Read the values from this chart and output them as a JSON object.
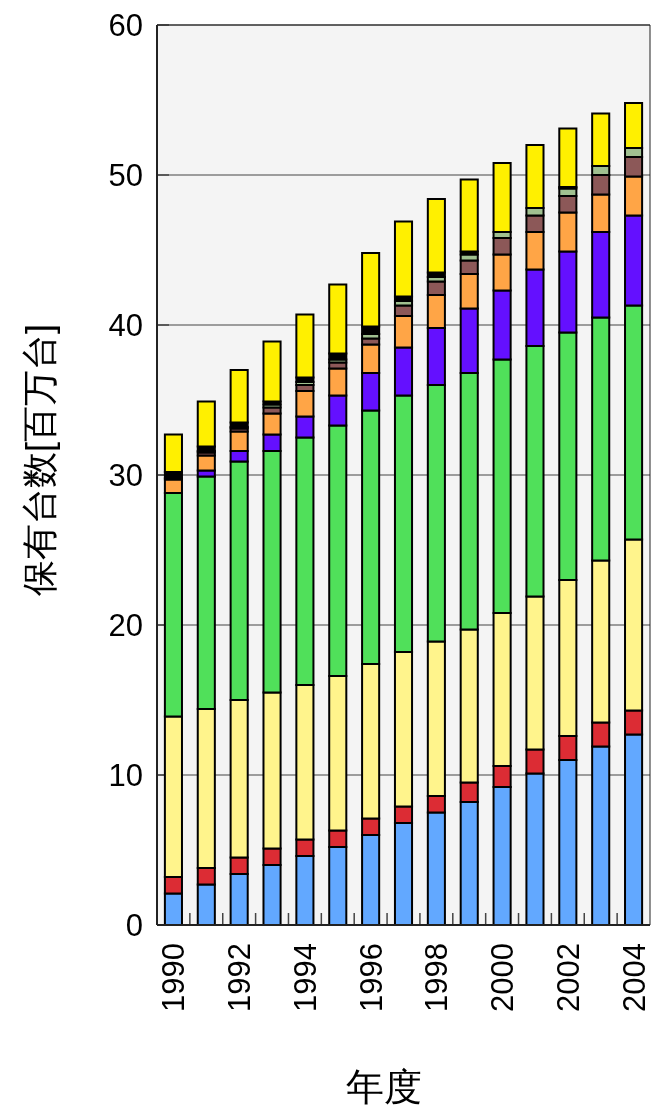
{
  "chart_data": {
    "type": "bar",
    "stacked": true,
    "xlabel": "年度",
    "ylabel": "保有台数[百万台]",
    "categories": [
      "1990",
      null,
      "1992",
      null,
      "1994",
      null,
      "1996",
      null,
      "1998",
      null,
      "2000",
      null,
      "2002",
      null,
      "2004"
    ],
    "ylim": [
      0,
      60
    ],
    "yticks": [
      0,
      10,
      20,
      30,
      40,
      50,
      60
    ],
    "grid": "y",
    "series": [
      {
        "color": "#62a8ff",
        "values": [
          2.1,
          2.7,
          3.4,
          4.0,
          4.6,
          5.2,
          6.0,
          6.8,
          7.5,
          8.2,
          9.2,
          10.1,
          11.0,
          11.9,
          12.7
        ]
      },
      {
        "color": "#dc2c34",
        "values": [
          1.1,
          1.1,
          1.1,
          1.1,
          1.1,
          1.1,
          1.1,
          1.1,
          1.1,
          1.3,
          1.4,
          1.6,
          1.6,
          1.6,
          1.6
        ]
      },
      {
        "color": "#fff48c",
        "values": [
          10.7,
          10.6,
          10.5,
          10.4,
          10.3,
          10.3,
          10.3,
          10.3,
          10.3,
          10.2,
          10.2,
          10.2,
          10.4,
          10.8,
          11.4
        ]
      },
      {
        "color": "#50e05a",
        "values": [
          14.9,
          15.5,
          15.9,
          16.1,
          16.5,
          16.7,
          16.9,
          17.1,
          17.1,
          17.1,
          16.9,
          16.7,
          16.5,
          16.2,
          15.6
        ]
      },
      {
        "color": "#6410ff",
        "values": [
          0,
          0.4,
          0.7,
          1.1,
          1.4,
          2.0,
          2.5,
          3.2,
          3.8,
          4.3,
          4.6,
          5.1,
          5.4,
          5.7,
          6.0
        ]
      },
      {
        "color": "#ffa546",
        "values": [
          0.9,
          1.0,
          1.3,
          1.4,
          1.7,
          1.8,
          1.9,
          2.1,
          2.2,
          2.3,
          2.4,
          2.5,
          2.6,
          2.5,
          2.6
        ]
      },
      {
        "color": "#8c5858",
        "values": [
          0,
          0.2,
          0.2,
          0.4,
          0.4,
          0.4,
          0.4,
          0.7,
          0.9,
          0.9,
          1.1,
          1.1,
          1.1,
          1.3,
          1.3
        ]
      },
      {
        "color": "#a0c090",
        "values": [
          0.1,
          0.1,
          0.1,
          0.2,
          0.2,
          0.2,
          0.3,
          0.3,
          0.3,
          0.4,
          0.4,
          0.5,
          0.5,
          0.6,
          0.6
        ]
      },
      {
        "color": "#000000",
        "values": [
          0.4,
          0.3,
          0.3,
          0.2,
          0.3,
          0.4,
          0.5,
          0.3,
          0.3,
          0.2,
          null,
          null,
          0.1,
          null,
          null
        ]
      },
      {
        "color": "#fff000",
        "values": [
          2.5,
          3.0,
          3.5,
          4.0,
          4.2,
          4.6,
          4.9,
          5.0,
          4.9,
          4.8,
          4.6,
          4.2,
          3.9,
          3.5,
          3.0
        ]
      }
    ]
  }
}
